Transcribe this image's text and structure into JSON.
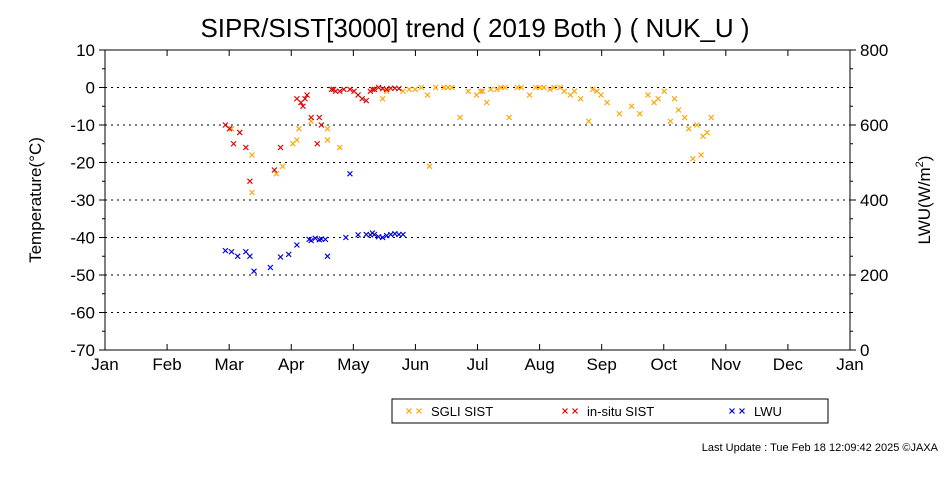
{
  "chart_data": {
    "type": "scatter",
    "title": "SIPR/SIST[3000] trend ( 2019 Both ) ( NUK_U )",
    "ylabel_left": "Temperature(°C)",
    "ylabel_right_main": "LWU(W/m",
    "ylabel_right_sup": "2",
    "ylabel_right_end": ")",
    "ylim_left": [
      -70,
      10
    ],
    "ylim_right": [
      0,
      800
    ],
    "y_ticks_left": [
      "10",
      "0",
      "-10",
      "-20",
      "-30",
      "-40",
      "-50",
      "-60",
      "-70"
    ],
    "y_ticks_right": [
      "800",
      "600",
      "400",
      "200",
      "0"
    ],
    "x_ticks": [
      "Jan",
      "Feb",
      "Mar",
      "Apr",
      "May",
      "Jun",
      "Jul",
      "Aug",
      "Sep",
      "Oct",
      "Nov",
      "Dec",
      "Jan"
    ],
    "grid": "dotted horizontal every 10",
    "legend_placement": "bottom-right",
    "series": [
      {
        "name": "SGLI SIST",
        "axis": "left",
        "color": "#ffa500",
        "x": [
          "2019-03-04",
          "2019-03-08",
          "2019-03-14",
          "2019-03-14",
          "2019-03-26",
          "2019-03-29",
          "2019-04-03",
          "2019-04-05",
          "2019-04-06",
          "2019-04-12",
          "2019-04-20",
          "2019-04-20",
          "2019-04-26",
          "2019-05-17",
          "2019-05-19",
          "2019-05-27",
          "2019-05-30",
          "2019-06-02",
          "2019-06-05",
          "2019-06-08",
          "2019-06-09",
          "2019-06-12",
          "2019-06-16",
          "2019-06-18",
          "2019-06-20",
          "2019-06-24",
          "2019-06-28",
          "2019-07-02",
          "2019-07-04",
          "2019-07-05",
          "2019-07-07",
          "2019-07-09",
          "2019-07-12",
          "2019-07-14",
          "2019-07-16",
          "2019-07-18",
          "2019-07-22",
          "2019-07-24",
          "2019-07-28",
          "2019-07-31",
          "2019-08-02",
          "2019-08-04",
          "2019-08-07",
          "2019-08-09",
          "2019-08-12",
          "2019-08-14",
          "2019-08-17",
          "2019-08-19",
          "2019-08-22",
          "2019-08-26",
          "2019-08-28",
          "2019-08-30",
          "2019-09-01",
          "2019-09-04",
          "2019-09-10",
          "2019-09-16",
          "2019-09-20",
          "2019-09-24",
          "2019-09-27",
          "2019-09-29",
          "2019-10-02",
          "2019-10-05",
          "2019-10-07",
          "2019-10-09",
          "2019-10-12",
          "2019-10-14",
          "2019-10-16",
          "2019-10-18",
          "2019-10-20",
          "2019-10-21",
          "2019-10-23",
          "2019-10-25"
        ],
        "y": [
          -11,
          -12,
          -18,
          -28,
          -23,
          -21,
          -15,
          -14,
          -11,
          -9,
          -14,
          -11,
          -16,
          -3,
          -1,
          -1,
          -0.5,
          -0.5,
          0,
          -2,
          -21,
          0,
          0,
          0,
          0,
          -8,
          -1,
          -2,
          -1,
          -1,
          -4,
          -0.5,
          -0.5,
          0,
          0,
          -8,
          0,
          0,
          -2,
          0,
          0,
          0,
          -0.5,
          0,
          0,
          -1,
          -2,
          -1,
          -3,
          -9,
          -0.5,
          -1,
          -2,
          -4,
          -7,
          -5,
          -7,
          -2,
          -4,
          -3,
          -1,
          -9,
          -3,
          -6,
          -8,
          -11,
          -19,
          -10,
          -18,
          -13,
          -12,
          -8
        ]
      },
      {
        "name": "in-situ SIST",
        "axis": "left",
        "color": "#e00000",
        "x": [
          "2019-03-01",
          "2019-03-03",
          "2019-03-05",
          "2019-03-08",
          "2019-03-11",
          "2019-03-13",
          "2019-03-25",
          "2019-03-28",
          "2019-04-05",
          "2019-04-07",
          "2019-04-08",
          "2019-04-09",
          "2019-04-10",
          "2019-04-12",
          "2019-04-15",
          "2019-04-16",
          "2019-04-17",
          "2019-04-22",
          "2019-04-23",
          "2019-04-24",
          "2019-04-26",
          "2019-04-28",
          "2019-05-01",
          "2019-05-03",
          "2019-05-05",
          "2019-05-07",
          "2019-05-09",
          "2019-05-11",
          "2019-05-12",
          "2019-05-13",
          "2019-05-15",
          "2019-05-17",
          "2019-05-19",
          "2019-05-21",
          "2019-05-23",
          "2019-05-25"
        ],
        "y": [
          -10,
          -11,
          -15,
          -12,
          -16,
          -25,
          -22,
          -16,
          -3,
          -4,
          -5,
          -3,
          -2,
          -8,
          -15,
          -8,
          -10,
          -0.5,
          -0.5,
          -1,
          -1,
          -0.5,
          -0.5,
          -1,
          -2,
          -3,
          -3.5,
          -1,
          -0.5,
          -0.5,
          0,
          -0.3,
          -0.5,
          -0.2,
          -0.2,
          -0.3
        ]
      },
      {
        "name": "LWU",
        "axis": "right",
        "color": "#0000e0",
        "x": [
          "2019-03-01",
          "2019-03-04",
          "2019-03-07",
          "2019-03-11",
          "2019-03-13",
          "2019-03-15",
          "2019-03-23",
          "2019-03-28",
          "2019-04-01",
          "2019-04-05",
          "2019-04-11",
          "2019-04-12",
          "2019-04-14",
          "2019-04-16",
          "2019-04-17",
          "2019-04-19",
          "2019-04-20",
          "2019-04-29",
          "2019-05-01",
          "2019-05-05",
          "2019-05-09",
          "2019-05-11",
          "2019-05-12",
          "2019-05-13",
          "2019-05-15",
          "2019-05-17",
          "2019-05-19",
          "2019-05-21",
          "2019-05-23",
          "2019-05-25",
          "2019-05-27"
        ],
        "y": [
          265,
          262,
          250,
          262,
          250,
          210,
          220,
          248,
          255,
          280,
          295,
          292,
          298,
          294,
          296,
          295,
          250,
          300,
          470,
          307,
          308,
          307,
          312,
          308,
          302,
          300,
          305,
          308,
          310,
          308,
          308
        ]
      }
    ]
  },
  "legend": {
    "items": [
      {
        "label": "SGLI SIST",
        "color": "#ffa500"
      },
      {
        "label": "in-situ SIST",
        "color": "#e00000"
      },
      {
        "label": "LWU",
        "color": "#0000e0"
      }
    ]
  },
  "footer": {
    "text": "Last Update : Tue Feb 18 12:09:42 2025  ©JAXA"
  }
}
